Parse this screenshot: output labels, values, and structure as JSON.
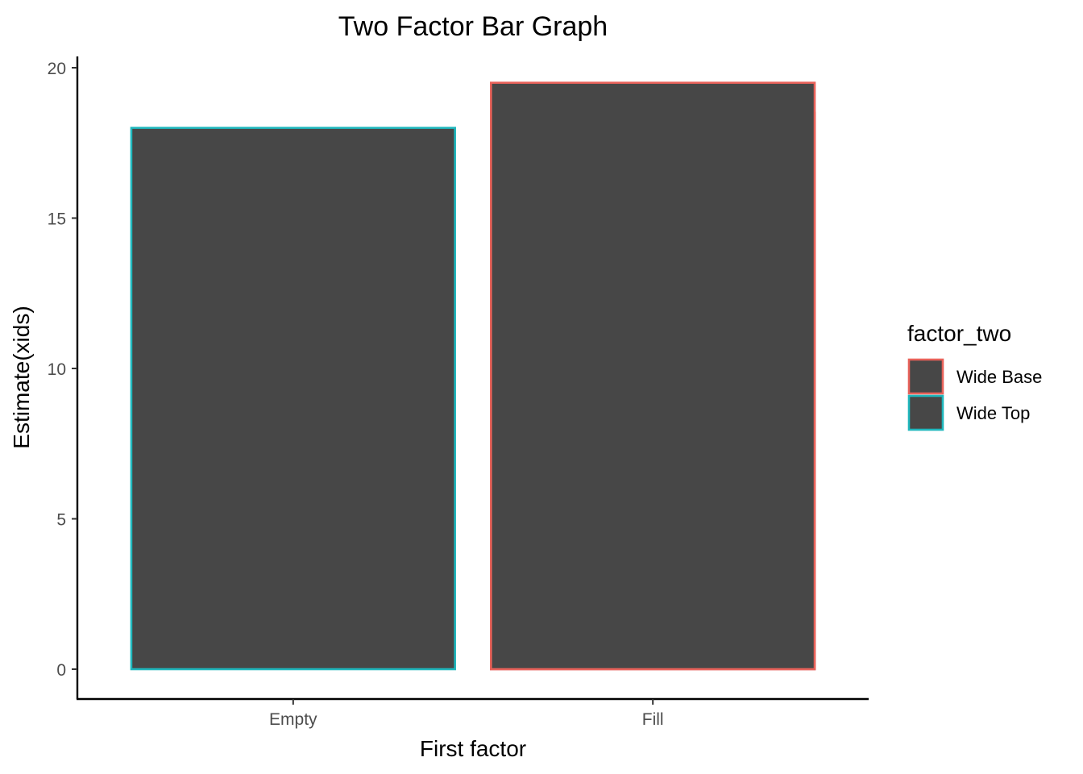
{
  "chart_data": {
    "type": "bar",
    "title": "Two Factor Bar Graph",
    "xlabel": "First factor",
    "ylabel": "Estimate(xids)",
    "categories": [
      "Empty",
      "Fill"
    ],
    "ylim": [
      0,
      20
    ],
    "yticks": [
      "0",
      "5",
      "10",
      "15",
      "20"
    ],
    "grid": false,
    "bar_fill": "#474747",
    "legend": {
      "title": "factor_two",
      "placement": "right",
      "entries": [
        {
          "label": "Wide Base",
          "color": "#e8625a"
        },
        {
          "label": "Wide Top",
          "color": "#1fb7bd"
        }
      ]
    },
    "series": [
      {
        "name": "Wide Base",
        "color": "#e8625a",
        "values": [
          null,
          18.5
        ],
        "stack": [
          null,
          [
            18.5,
            19.5
          ]
        ]
      },
      {
        "name": "Wide Top",
        "color": "#1fb7bd",
        "values": [
          18,
          null
        ]
      }
    ],
    "bars": [
      {
        "category": "Empty",
        "factor_two": "Wide Top",
        "value": 18
      },
      {
        "category": "Fill",
        "factor_two": "Wide Base",
        "value": 18.5
      },
      {
        "category": "Fill",
        "factor_two": "Wide Base",
        "value": 19.5
      }
    ]
  }
}
